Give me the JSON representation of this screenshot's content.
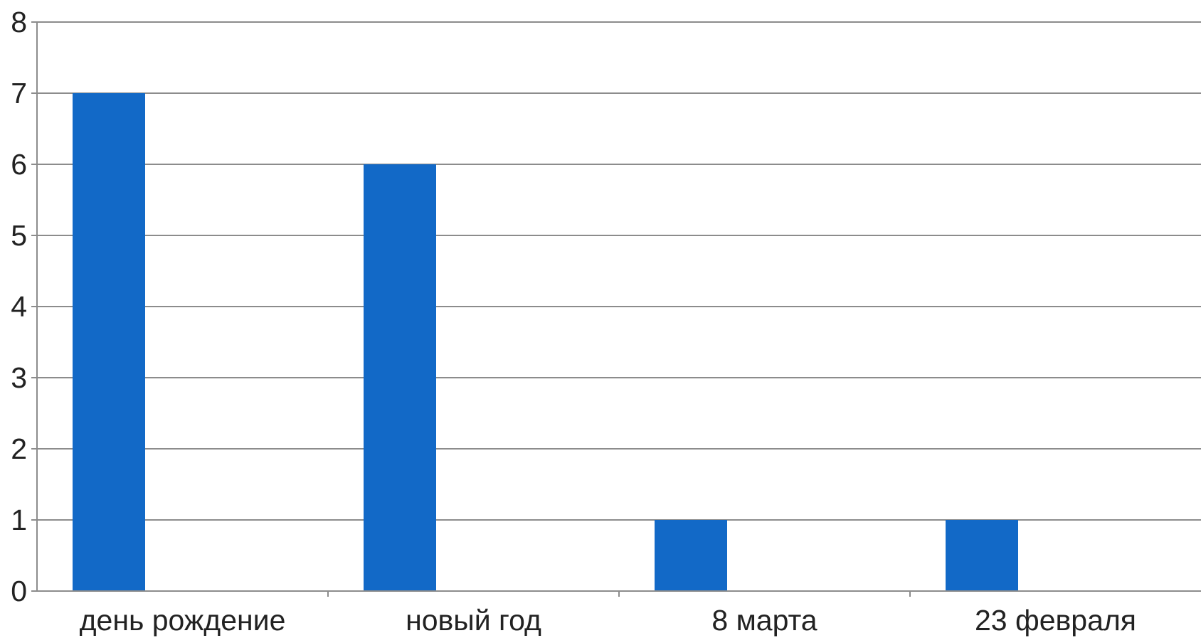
{
  "chart_data": {
    "type": "bar",
    "title": "",
    "xlabel": "",
    "ylabel": "",
    "categories": [
      "день рождение",
      "новый год",
      "8 марта",
      "23 февраля"
    ],
    "values": [
      7,
      6,
      1,
      1
    ],
    "ylim": [
      0,
      8
    ],
    "yticks": [
      "0",
      "1",
      "2",
      "3",
      "4",
      "5",
      "6",
      "7",
      "8"
    ],
    "grid": true,
    "legend": "none",
    "bar_color": "#1269c7",
    "grid_color": "#8c8c8c",
    "axis_color": "#8c8c8c"
  }
}
